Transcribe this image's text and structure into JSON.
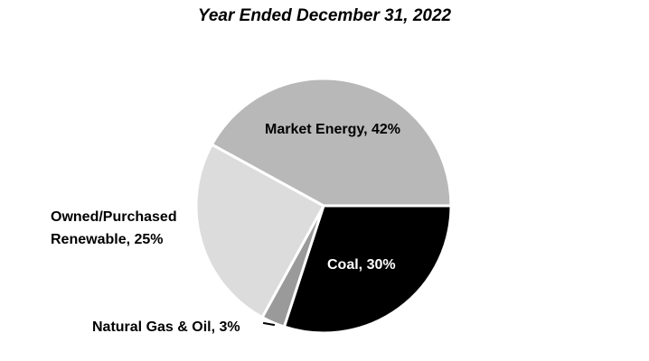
{
  "chart_data": {
    "type": "pie",
    "title": "Year Ended December 31, 2022",
    "start_angle_deg": 90,
    "direction": "clockwise",
    "separator_color": "#ffffff",
    "background_color": "#ffffff",
    "slices": [
      {
        "id": "coal",
        "label": "Coal",
        "value_pct": 30,
        "color": "#000000",
        "label_color": "#ffffff",
        "label_text": "Coal, 30%"
      },
      {
        "id": "natural-gas-oil",
        "label": "Natural Gas & Oil",
        "value_pct": 3,
        "color": "#9a9a9a",
        "label_color": "#000000",
        "label_text": "Natural Gas & Oil, 3%",
        "has_leader_line": true
      },
      {
        "id": "owned-purchased-renewable",
        "label": "Owned/Purchased Renewable",
        "value_pct": 25,
        "color": "#dcdcdc",
        "label_color": "#000000",
        "label_text": "Owned/Purchased Renewable, 25%"
      },
      {
        "id": "market-energy",
        "label": "Market Energy",
        "value_pct": 42,
        "color": "#b8b8b8",
        "label_color": "#000000",
        "label_text": "Market Energy, 42%"
      }
    ]
  }
}
